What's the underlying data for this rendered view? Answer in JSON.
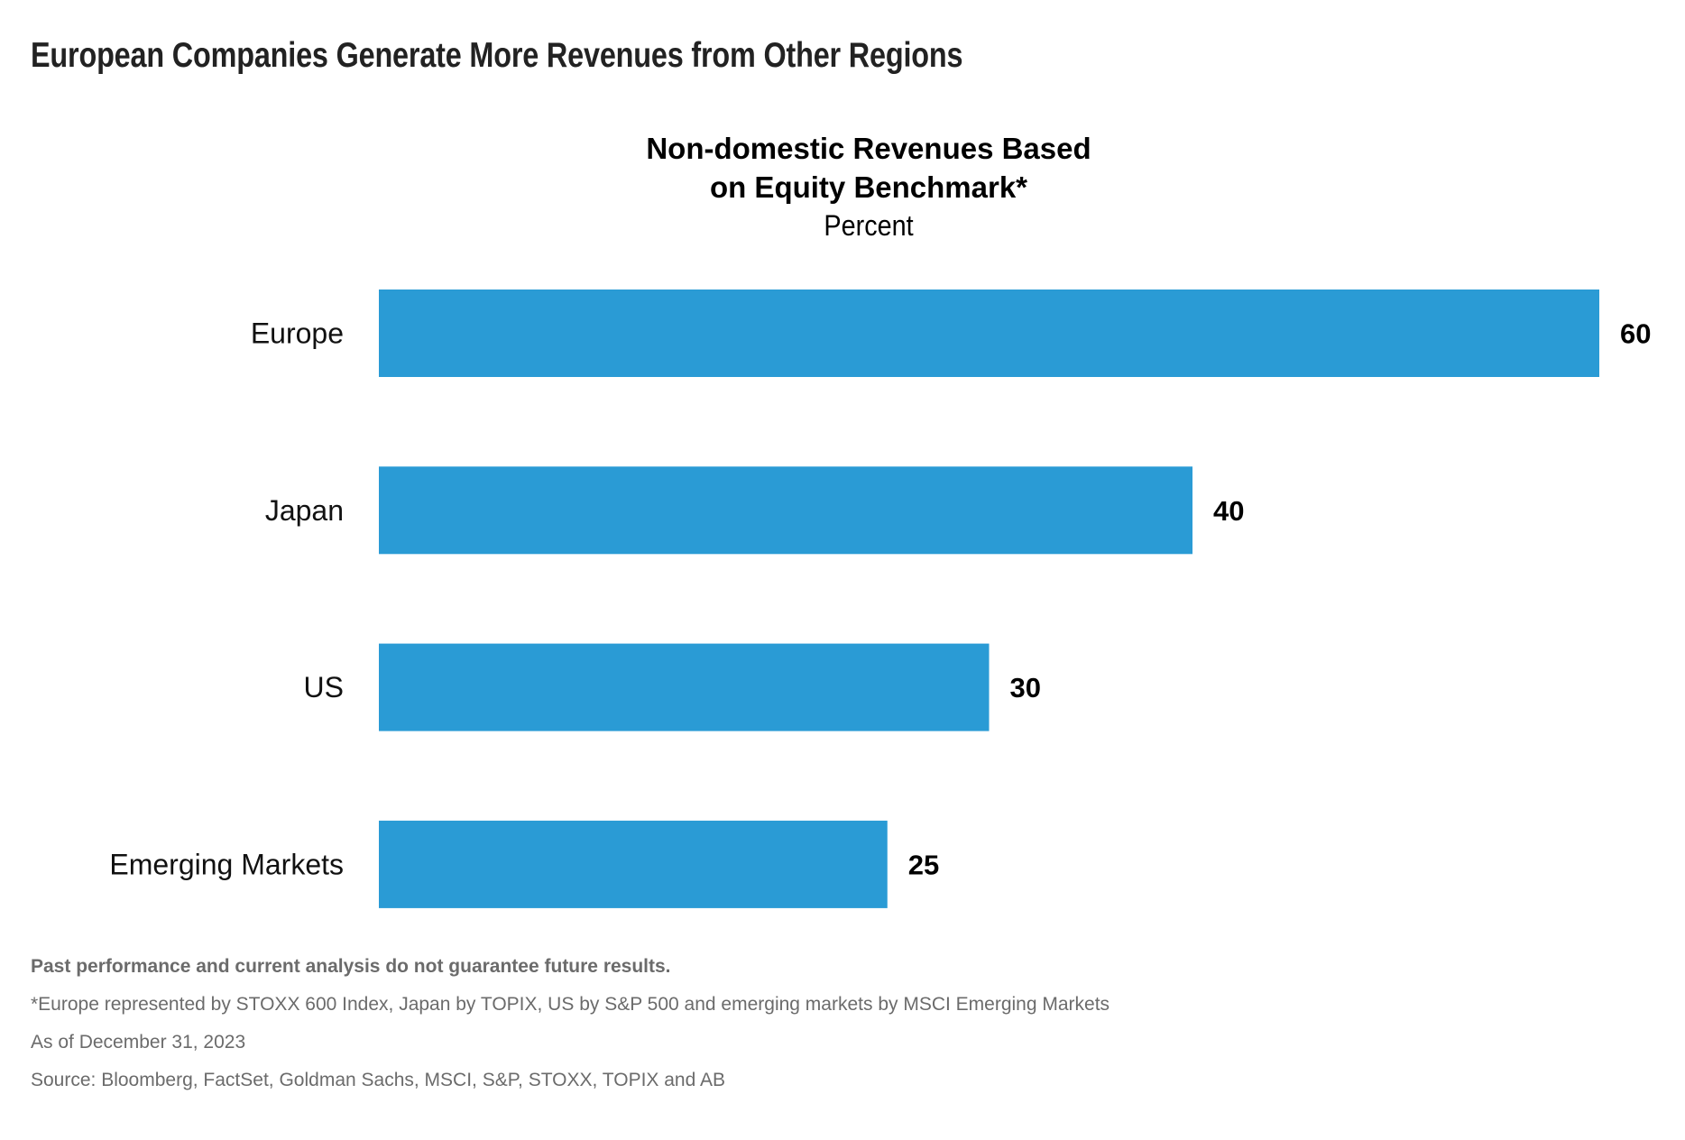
{
  "page_title": "European Companies Generate More Revenues from Other Regions",
  "chart_data": {
    "type": "bar",
    "orientation": "horizontal",
    "title": "Non-domestic Revenues Based on Equity Benchmark*",
    "title_lines": [
      "Non-domestic Revenues Based",
      "on Equity Benchmark*"
    ],
    "unit_label": "Percent",
    "categories": [
      "Europe",
      "Japan",
      "US",
      "Emerging Markets"
    ],
    "values": [
      60,
      40,
      30,
      25
    ],
    "value_labels": [
      "60",
      "40",
      "30",
      "25"
    ],
    "xlabel": "",
    "ylabel": "",
    "xlim": [
      0,
      60
    ],
    "grid": false,
    "legend": null,
    "bar_color": "#2A9BD5"
  },
  "footnotes": {
    "disclaimer": "Past performance and current analysis do not guarantee future results.",
    "note": "*Europe represented by STOXX 600 Index, Japan by TOPIX, US by S&P 500 and emerging markets by MSCI Emerging Markets",
    "as_of": "As of December 31, 2023",
    "source": "Source: Bloomberg, FactSet, Goldman Sachs, MSCI, S&P, STOXX, TOPIX  and AB"
  }
}
